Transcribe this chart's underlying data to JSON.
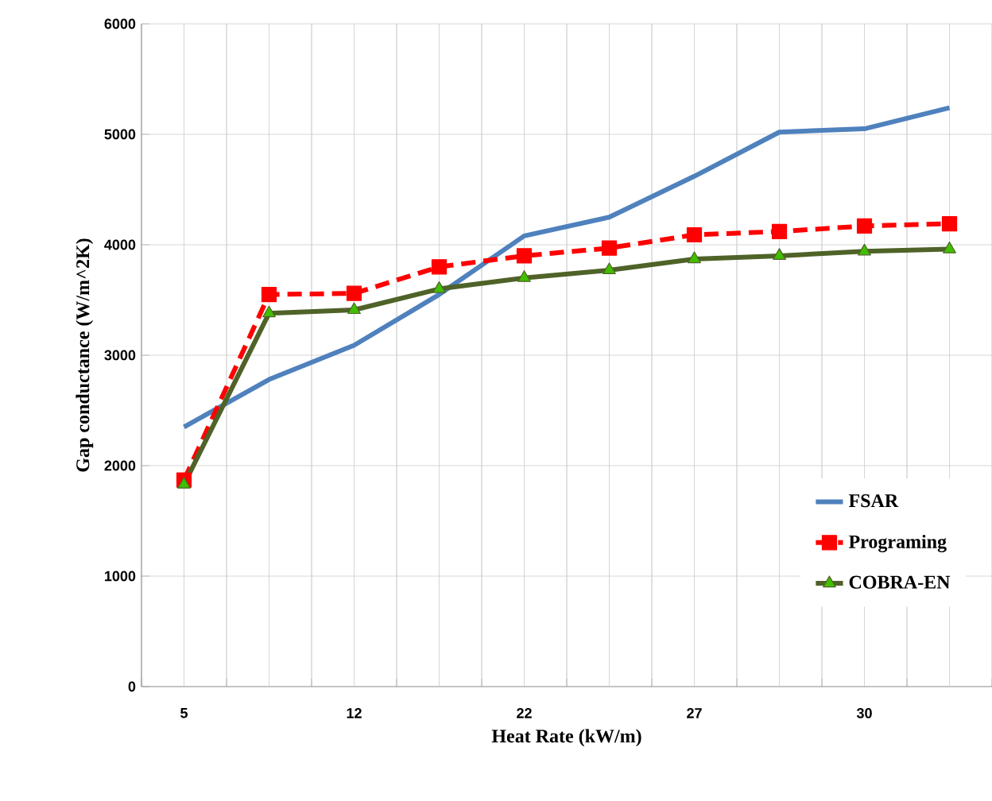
{
  "chart_data": {
    "type": "line",
    "xlabel": "Heat Rate (kW/m)",
    "ylabel": "Gap conductance (W/m^2K)",
    "categories": [
      "5",
      null,
      "12",
      null,
      "22",
      null,
      "27",
      null,
      "30",
      null
    ],
    "series": [
      {
        "name": "FSAR",
        "color": "#4f81bd",
        "marker": "none",
        "line_style": "solid",
        "values": [
          2350,
          2780,
          3090,
          3550,
          4080,
          4250,
          4620,
          5020,
          5050,
          5240
        ]
      },
      {
        "name": "Programing",
        "color": "#ff0000",
        "marker": "square",
        "line_style": "dashed",
        "values": [
          1870,
          3550,
          3560,
          3800,
          3900,
          3970,
          4090,
          4120,
          4170,
          4190
        ]
      },
      {
        "name": "COBRA-EN",
        "color": "#4f6228",
        "marker": "triangle",
        "line_style": "solid",
        "values": [
          1830,
          3380,
          3410,
          3600,
          3700,
          3770,
          3870,
          3900,
          3940,
          3960
        ]
      }
    ],
    "ylim": [
      0,
      6000
    ],
    "yticks": [
      0,
      1000,
      2000,
      3000,
      4000,
      5000,
      6000
    ],
    "grid": true,
    "legend": "bottom right"
  }
}
